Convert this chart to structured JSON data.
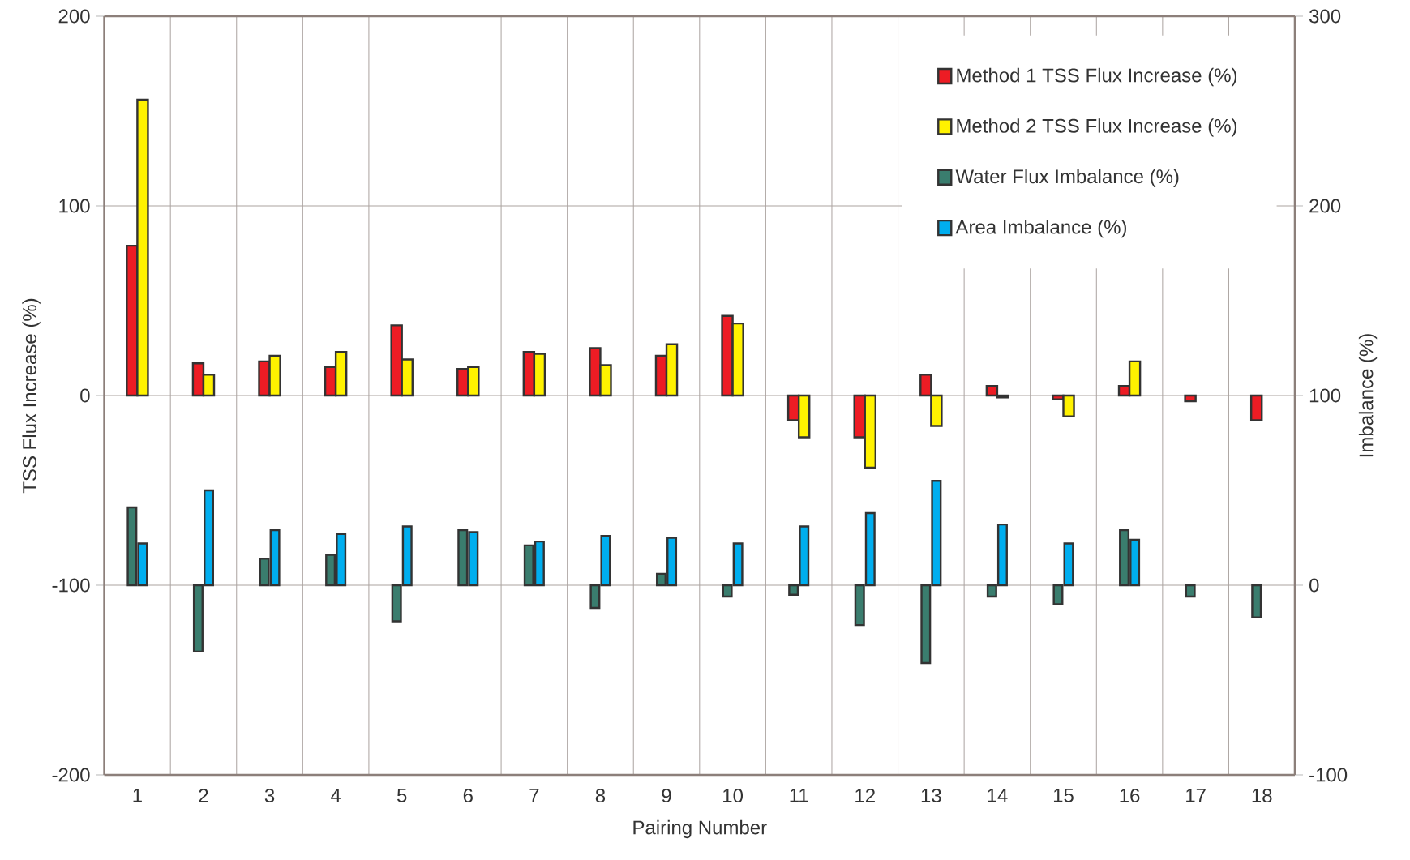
{
  "chart_data": {
    "type": "bar",
    "xlabel": "Pairing Number",
    "ylabel": "TSS Flux Increase (%)",
    "y2label": "Imbalance (%)",
    "categories": [
      "1",
      "2",
      "3",
      "4",
      "5",
      "6",
      "7",
      "8",
      "9",
      "10",
      "11",
      "12",
      "13",
      "14",
      "15",
      "16",
      "17",
      "18"
    ],
    "series": [
      {
        "name": "Method 1 TSS Flux Increase (%)",
        "color": "#ed1c24",
        "values": [
          79,
          17,
          18,
          15,
          37,
          14,
          23,
          25,
          21,
          42,
          -13,
          -22,
          11,
          5,
          -2,
          5,
          -3,
          -13
        ]
      },
      {
        "name": "Method 2 TSS Flux Increase (%)",
        "color": "#fff200",
        "values": [
          156,
          11,
          21,
          23,
          19,
          15,
          22,
          16,
          27,
          38,
          -22,
          -38,
          -16,
          -1,
          -11,
          18,
          null,
          null
        ]
      },
      {
        "name": "Water Flux Imbalance (%)",
        "color": "#3a7d6e",
        "axis": "y2",
        "values": [
          41,
          -35,
          14,
          16,
          -19,
          29,
          21,
          -12,
          6,
          -6,
          -5,
          -21,
          -41,
          -6,
          -10,
          29,
          -6,
          -17
        ]
      },
      {
        "name": "Area Imbalance (%)",
        "color": "#00aeef",
        "axis": "y2",
        "values": [
          22,
          50,
          29,
          27,
          31,
          28,
          23,
          26,
          25,
          22,
          31,
          38,
          55,
          32,
          22,
          24,
          null,
          null
        ]
      }
    ],
    "ylim": [
      -200,
      200
    ],
    "yticks": [
      -200,
      -100,
      0,
      100,
      200
    ],
    "y2lim": [
      -100,
      300
    ],
    "y2ticks": [
      -100,
      0,
      100,
      200,
      300
    ],
    "grid": true,
    "legend": "top right"
  }
}
